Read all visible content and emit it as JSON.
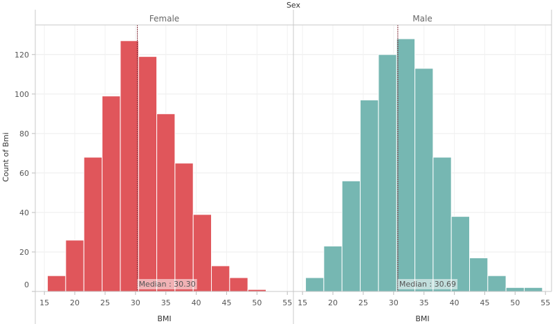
{
  "chart_data": {
    "type": "bar",
    "facet_title": "Sex",
    "ylabel": "Count of Bmi",
    "ylim": [
      0,
      135
    ],
    "yticks": [
      0,
      20,
      40,
      60,
      80,
      100,
      120
    ],
    "grid": true,
    "panels": [
      {
        "name": "Female",
        "color": "#e0565b",
        "xlabel": "BMI",
        "xlim": [
          13.5,
          56
        ],
        "xticks": [
          15,
          20,
          25,
          30,
          35,
          40,
          45,
          50,
          55
        ],
        "bin_width": 3,
        "bin_start": [
          15.5,
          18.5,
          21.5,
          24.5,
          27.5,
          30.5,
          33.5,
          36.5,
          39.5,
          42.5,
          45.5,
          48.5
        ],
        "counts": [
          8,
          26,
          68,
          99,
          127,
          119,
          90,
          65,
          39,
          13,
          7,
          1
        ],
        "median": 30.3,
        "median_label": "Median : 30.30"
      },
      {
        "name": "Male",
        "color": "#76b7b2",
        "xlabel": "BMI",
        "xlim": [
          13.5,
          56
        ],
        "xticks": [
          15,
          20,
          25,
          30,
          35,
          40,
          45,
          50,
          55
        ],
        "bin_width": 3,
        "bin_start": [
          15.5,
          18.5,
          21.5,
          24.5,
          27.5,
          30.5,
          33.5,
          36.5,
          39.5,
          42.5,
          45.5,
          48.5,
          51.5
        ],
        "counts": [
          7,
          23,
          56,
          97,
          120,
          128,
          113,
          68,
          38,
          17,
          8,
          2,
          2
        ],
        "median": 30.69,
        "median_label": "Median : 30.69"
      }
    ]
  }
}
